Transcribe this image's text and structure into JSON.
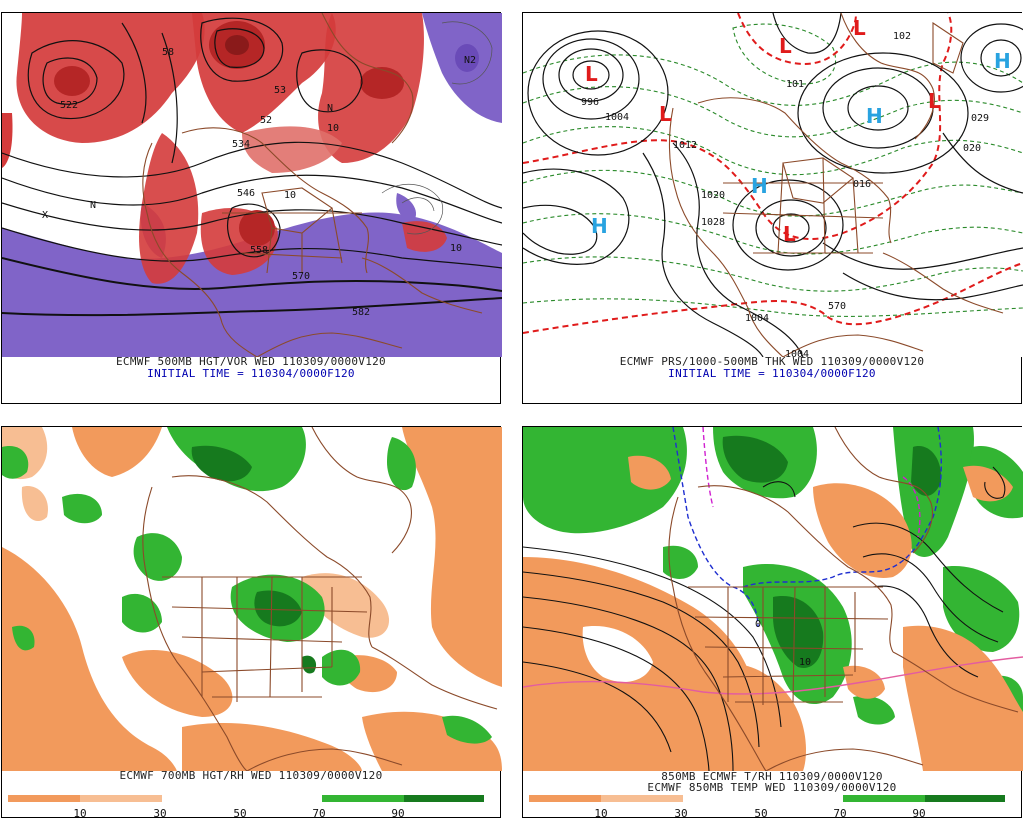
{
  "colors": {
    "vort_red": "#d43b3b",
    "vort_purple": "#8064c8",
    "rh_green": "#33b533",
    "rh_dgreen": "#167a1e",
    "rh_orange": "#f29a5c",
    "rh_lorange": "#f7be93",
    "coast": "#8b4a2a",
    "h_color": "#29a3e0",
    "l_color": "#e01b1b"
  },
  "panels": [
    {
      "id": "vort500",
      "caption_line1": "ECMWF 500MB HGT/VOR WED 110309/0000V120",
      "caption_line2": "INITIAL TIME = 110304/0000F120",
      "contour_labels": [
        "522",
        "534",
        "546",
        "558",
        "570",
        "582",
        "10",
        "10",
        "10",
        "N2",
        "N"
      ],
      "icons": [
        "vorticity-field",
        "height-contours",
        "coastline-map"
      ]
    },
    {
      "id": "prs_thk",
      "caption_line1": "ECMWF PRS/1000-500MB THK WED 110309/0000V120",
      "caption_line2": "INITIAL TIME = 110304/0000F120",
      "contour_labels": [
        "996",
        "1004",
        "1012",
        "1020",
        "1028",
        "1004",
        "1004",
        "029",
        "020",
        "016",
        "570",
        "102"
      ],
      "highs": [
        "H",
        "H",
        "H",
        "H"
      ],
      "lows": [
        "L",
        "L",
        "L",
        "L",
        "L",
        "L"
      ]
    },
    {
      "id": "rh700",
      "caption_line1": "ECMWF 700MB HGT/RH WED 110309/0000V120",
      "caption_line2": "",
      "colorbar_labels": [
        "10",
        "30",
        "50",
        "70",
        "90"
      ]
    },
    {
      "id": "t850",
      "caption_line1": "850MB ECMWF T/RH 110309/0000V120",
      "caption_line2": "ECMWF 850MB TEMP WED 110309/0000V120",
      "colorbar_labels": [
        "10",
        "30",
        "50",
        "70",
        "90"
      ]
    }
  ]
}
